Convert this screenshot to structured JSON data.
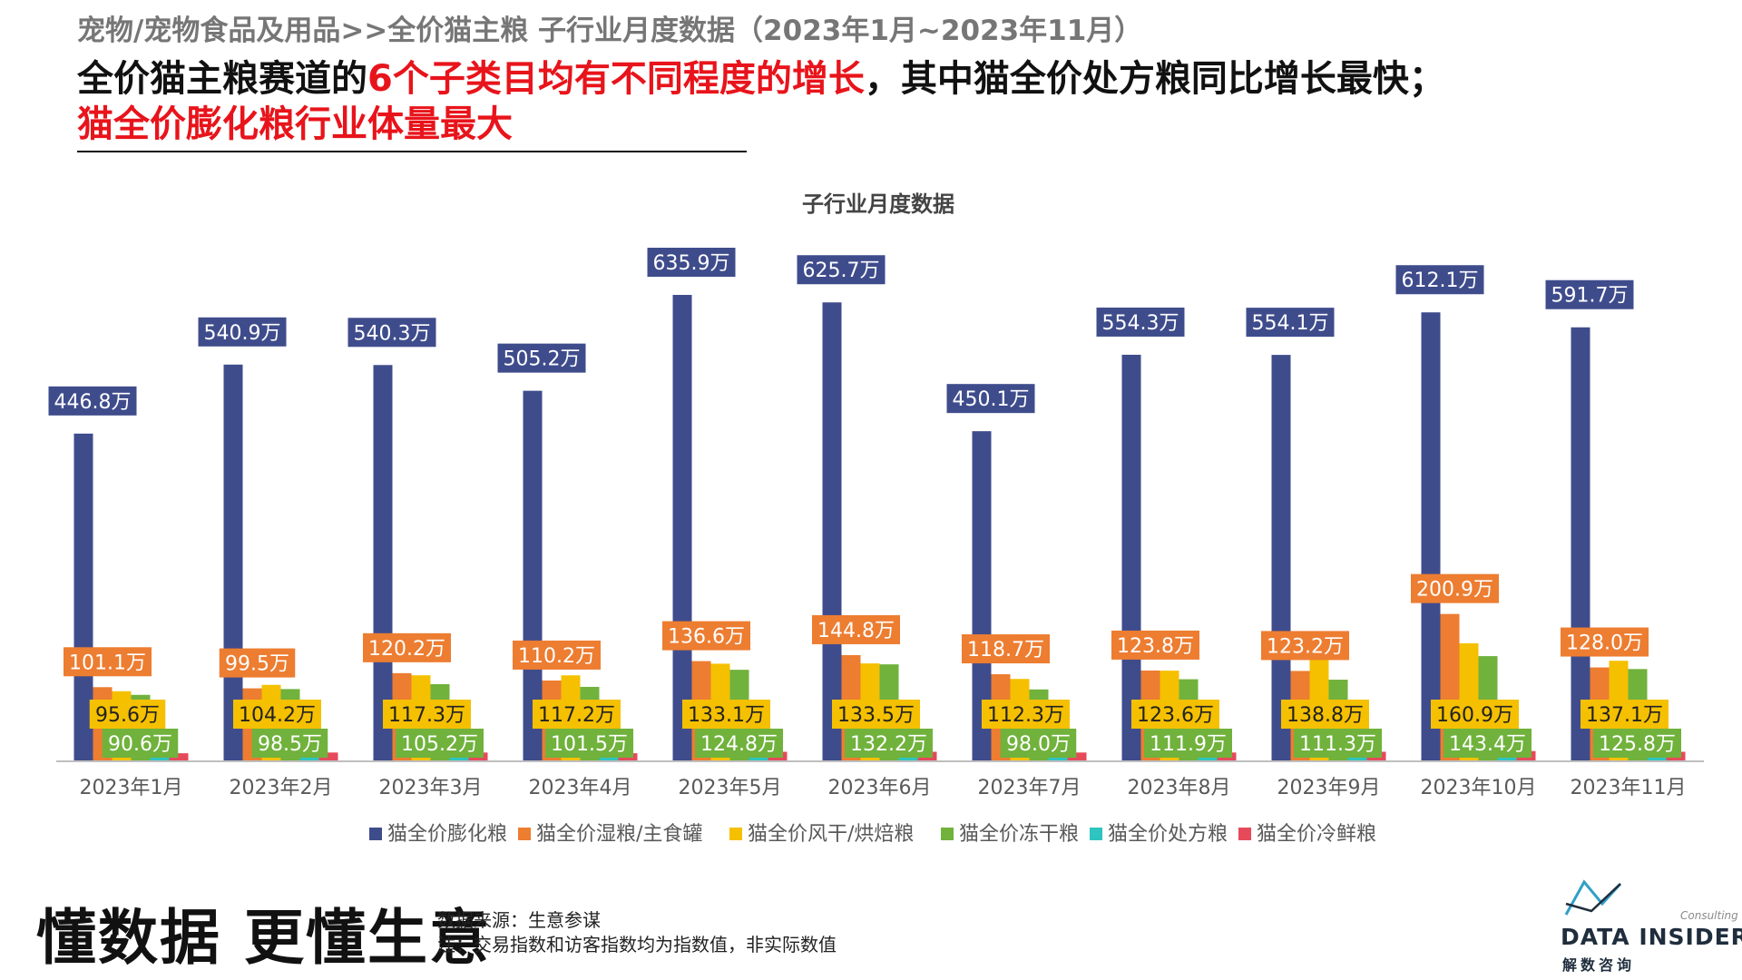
{
  "header": {
    "breadcrumb": "宠物/宠物食品及用品>>全价猫主粮  子行业月度数据（2023年1月~2023年11月）",
    "headline_part1": "全价猫主粮赛道的",
    "headline_red1": "6个子类目均有不同程度的增长",
    "headline_part2": "，其中猫全价处方粮同比增长最快；",
    "headline_red2": "猫全价膨化粮行业体量最大"
  },
  "footer": {
    "slogan": "懂数据 更懂生意",
    "source_line1": "数据来源：生意参谋",
    "source_line2": "注：交易指数和访客指数均为指数值，非实际数值"
  },
  "logo": {
    "wordmark": "DATA INSIDER",
    "consulting": "Consulting",
    "cn": "解数咨询"
  },
  "chart_data": {
    "type": "bar",
    "title": "子行业月度数据",
    "unit_suffix": "万",
    "categories": [
      "2023年1月",
      "2023年2月",
      "2023年3月",
      "2023年4月",
      "2023年5月",
      "2023年6月",
      "2023年7月",
      "2023年8月",
      "2023年9月",
      "2023年10月",
      "2023年11月"
    ],
    "legend_position": "bottom",
    "series": [
      {
        "name": "猫全价膨化粮",
        "color": "#3f4c8c",
        "labeled": true,
        "values": [
          446.8,
          540.9,
          540.3,
          505.2,
          635.9,
          625.7,
          450.1,
          554.3,
          554.1,
          612.1,
          591.7
        ]
      },
      {
        "name": "猫全价湿粮/主食罐",
        "color": "#ed7d31",
        "labeled": true,
        "values": [
          101.1,
          99.5,
          120.2,
          110.2,
          136.6,
          144.8,
          118.7,
          123.8,
          123.2,
          200.9,
          128.0
        ]
      },
      {
        "name": "猫全价风干/烘焙粮",
        "color": "#f5c000",
        "labeled": true,
        "values": [
          95.6,
          104.2,
          117.3,
          117.2,
          133.1,
          133.5,
          112.3,
          123.6,
          138.8,
          160.9,
          137.1
        ]
      },
      {
        "name": "猫全价冻干粮",
        "color": "#70b23c",
        "labeled": true,
        "values": [
          90.6,
          98.5,
          105.2,
          101.5,
          124.8,
          132.2,
          98.0,
          111.9,
          111.3,
          143.4,
          125.8
        ]
      },
      {
        "name": "猫全价处方粮",
        "color": "#2ec4c0",
        "labeled": false,
        "values": [
          8,
          9,
          9,
          9,
          10,
          10,
          9,
          10,
          10,
          11,
          10
        ]
      },
      {
        "name": "猫全价冷鲜粮",
        "color": "#e64a5a",
        "labeled": false,
        "values": [
          11,
          12,
          12,
          11,
          13,
          13,
          12,
          12,
          13,
          14,
          13
        ]
      }
    ]
  }
}
